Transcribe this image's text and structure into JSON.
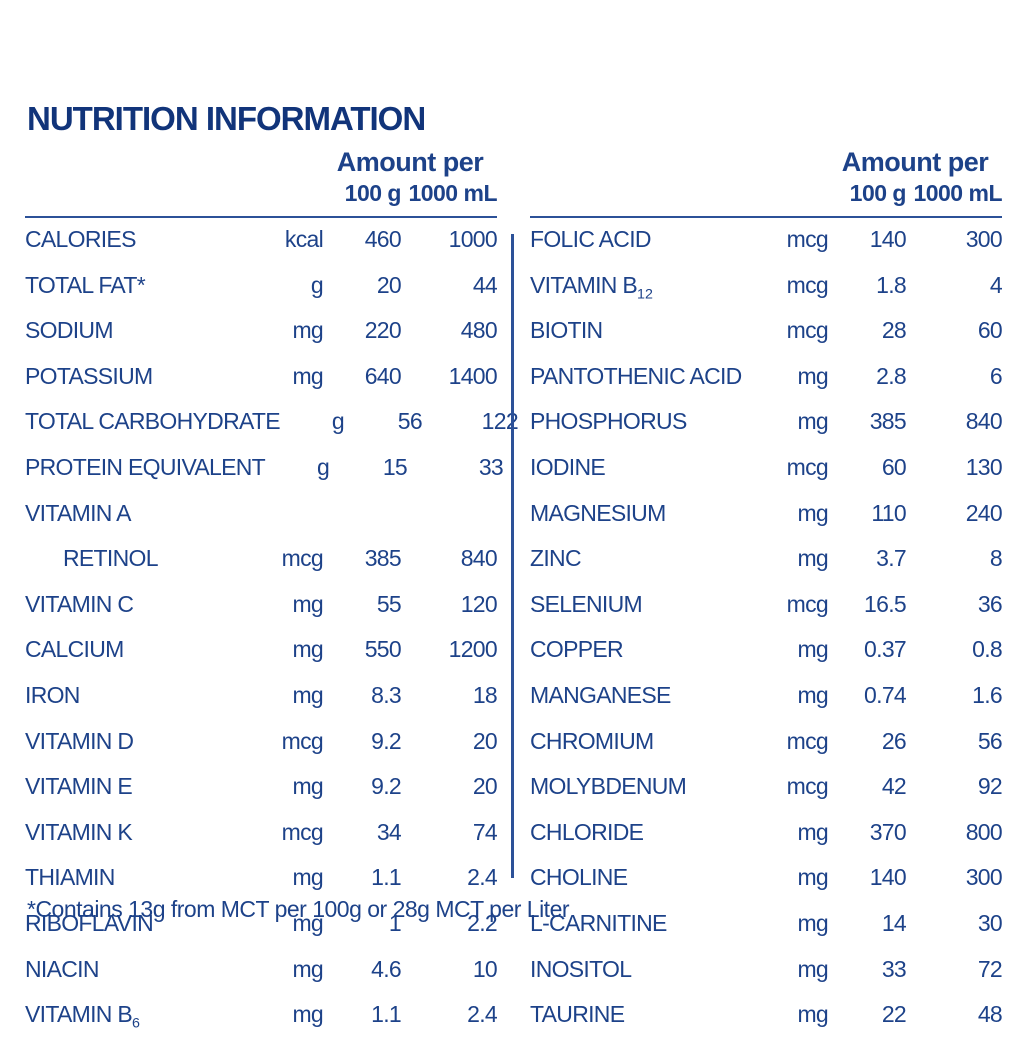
{
  "title": "NUTRITION INFORMATION",
  "header": {
    "amount_per": "Amount per",
    "col_100g": "100 g",
    "col_1000ml": "1000 mL"
  },
  "footnote": "*Contains 13g from MCT per 100g or 28g MCT per Liter",
  "colors": {
    "text": "#1d4289",
    "title": "#11347a",
    "rule": "#2c5198",
    "background": "#ffffff"
  },
  "columns": [
    {
      "rows": [
        {
          "label": "CALORIES",
          "sub": "",
          "unit": "kcal",
          "v100": "460",
          "v1000": "1000"
        },
        {
          "label": "TOTAL FAT*",
          "sub": "",
          "unit": "g",
          "v100": "20",
          "v1000": "44"
        },
        {
          "label": "SODIUM",
          "sub": "",
          "unit": "mg",
          "v100": "220",
          "v1000": "480"
        },
        {
          "label": "POTASSIUM",
          "sub": "",
          "unit": "mg",
          "v100": "640",
          "v1000": "1400"
        },
        {
          "label": "TOTAL CARBOHYDRATE",
          "sub": "",
          "unit": "g",
          "v100": "56",
          "v1000": "122"
        },
        {
          "label": "PROTEIN EQUIVALENT",
          "sub": "",
          "unit": "g",
          "v100": "15",
          "v1000": "33"
        },
        {
          "label": "VITAMIN A",
          "sub": "",
          "unit": "",
          "v100": "",
          "v1000": ""
        },
        {
          "label": "RETINOL",
          "sub": "",
          "unit": "mcg",
          "v100": "385",
          "v1000": "840",
          "indent": true
        },
        {
          "label": "VITAMIN C",
          "sub": "",
          "unit": "mg",
          "v100": "55",
          "v1000": "120"
        },
        {
          "label": "CALCIUM",
          "sub": "",
          "unit": "mg",
          "v100": "550",
          "v1000": "1200"
        },
        {
          "label": "IRON",
          "sub": "",
          "unit": "mg",
          "v100": "8.3",
          "v1000": "18"
        },
        {
          "label": "VITAMIN D",
          "sub": "",
          "unit": "mcg",
          "v100": "9.2",
          "v1000": "20"
        },
        {
          "label": "VITAMIN E",
          "sub": "",
          "unit": "mg",
          "v100": "9.2",
          "v1000": "20"
        },
        {
          "label": "VITAMIN K",
          "sub": "",
          "unit": "mcg",
          "v100": "34",
          "v1000": "74"
        },
        {
          "label": "THIAMIN",
          "sub": "",
          "unit": "mg",
          "v100": "1.1",
          "v1000": "2.4"
        },
        {
          "label": "RIBOFLAVIN",
          "sub": "",
          "unit": "mg",
          "v100": "1",
          "v1000": "2.2"
        },
        {
          "label": "NIACIN",
          "sub": "",
          "unit": "mg",
          "v100": "4.6",
          "v1000": "10"
        },
        {
          "label": "VITAMIN B",
          "sub": "6",
          "unit": "mg",
          "v100": "1.1",
          "v1000": "2.4"
        }
      ]
    },
    {
      "rows": [
        {
          "label": "FOLIC ACID",
          "sub": "",
          "unit": "mcg",
          "v100": "140",
          "v1000": "300"
        },
        {
          "label": "VITAMIN B",
          "sub": "12",
          "unit": "mcg",
          "v100": "1.8",
          "v1000": "4"
        },
        {
          "label": "BIOTIN",
          "sub": "",
          "unit": "mcg",
          "v100": "28",
          "v1000": "60"
        },
        {
          "label": "PANTOTHENIC ACID",
          "sub": "",
          "unit": "mg",
          "v100": "2.8",
          "v1000": "6"
        },
        {
          "label": "PHOSPHORUS",
          "sub": "",
          "unit": "mg",
          "v100": "385",
          "v1000": "840"
        },
        {
          "label": "IODINE",
          "sub": "",
          "unit": "mcg",
          "v100": "60",
          "v1000": "130"
        },
        {
          "label": "MAGNESIUM",
          "sub": "",
          "unit": "mg",
          "v100": "110",
          "v1000": "240"
        },
        {
          "label": "ZINC",
          "sub": "",
          "unit": "mg",
          "v100": "3.7",
          "v1000": "8"
        },
        {
          "label": "SELENIUM",
          "sub": "",
          "unit": "mcg",
          "v100": "16.5",
          "v1000": "36"
        },
        {
          "label": "COPPER",
          "sub": "",
          "unit": "mg",
          "v100": "0.37",
          "v1000": "0.8"
        },
        {
          "label": "MANGANESE",
          "sub": "",
          "unit": "mg",
          "v100": "0.74",
          "v1000": "1.6"
        },
        {
          "label": "CHROMIUM",
          "sub": "",
          "unit": "mcg",
          "v100": "26",
          "v1000": "56"
        },
        {
          "label": "MOLYBDENUM",
          "sub": "",
          "unit": "mcg",
          "v100": "42",
          "v1000": "92"
        },
        {
          "label": "CHLORIDE",
          "sub": "",
          "unit": "mg",
          "v100": "370",
          "v1000": "800"
        },
        {
          "label": "CHOLINE",
          "sub": "",
          "unit": "mg",
          "v100": "140",
          "v1000": "300"
        },
        {
          "label": "L-CARNITINE",
          "sub": "",
          "unit": "mg",
          "v100": "14",
          "v1000": "30"
        },
        {
          "label": "INOSITOL",
          "sub": "",
          "unit": "mg",
          "v100": "33",
          "v1000": "72"
        },
        {
          "label": "TAURINE",
          "sub": "",
          "unit": "mg",
          "v100": "22",
          "v1000": "48"
        }
      ]
    }
  ]
}
